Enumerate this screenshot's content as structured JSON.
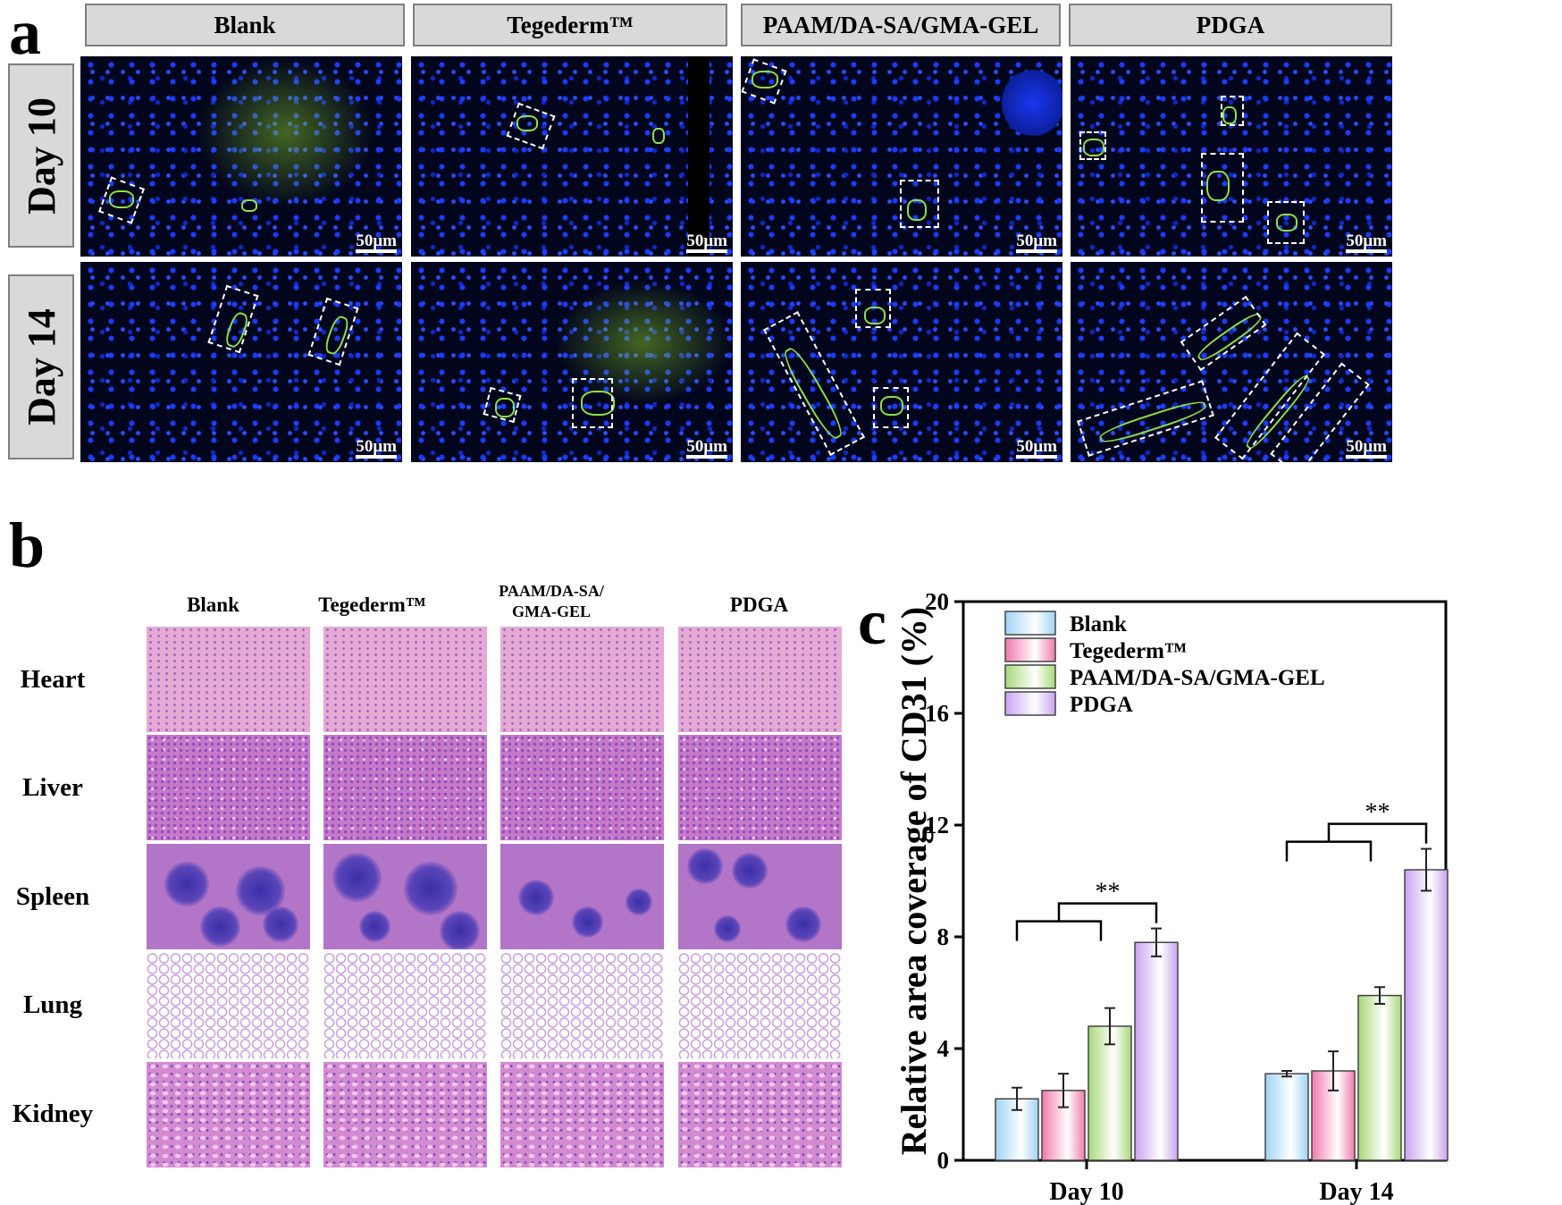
{
  "panel_a": {
    "letter": "a",
    "columns": [
      "Blank",
      "Tegederm™",
      "PAAM/DA-SA/GMA-GEL",
      "PDGA"
    ],
    "rows": [
      "Day 10",
      "Day 14"
    ],
    "scale_bar": "50μm"
  },
  "panel_b": {
    "letter": "b",
    "columns": [
      "Blank",
      "Tegederm™",
      "PAAM/DA-SA/ GMA-GEL",
      "PDGA"
    ],
    "rows": [
      "Heart",
      "Liver",
      "Spleen",
      "Lung",
      "Kidney"
    ]
  },
  "panel_c": {
    "letter": "c"
  },
  "chart_data": {
    "type": "bar",
    "categories": [
      "Day 10",
      "Day 14"
    ],
    "ylabel": "Relative area coverage of CD31 (%)",
    "xlabel": "",
    "ylim": [
      0,
      20
    ],
    "yticks": [
      0,
      4,
      8,
      12,
      16,
      20
    ],
    "legend_position": "top-left",
    "series": [
      {
        "name": "Blank",
        "values": [
          2.2,
          3.1
        ],
        "errors": [
          0.4,
          0.1
        ],
        "color": "#9fd3f5"
      },
      {
        "name": "Tegederm™",
        "values": [
          2.5,
          3.2
        ],
        "errors": [
          0.6,
          0.7
        ],
        "color": "#f07aab"
      },
      {
        "name": "PAAM/DA-SA/GMA-GEL",
        "values": [
          4.8,
          5.9
        ],
        "errors": [
          0.65,
          0.3
        ],
        "color": "#a8d878"
      },
      {
        "name": "PDGA",
        "values": [
          7.8,
          10.4
        ],
        "errors": [
          0.5,
          0.75
        ],
        "color": "#c9a3f0"
      }
    ],
    "significance": [
      {
        "category": "Day 10",
        "label": "**"
      },
      {
        "category": "Day 14",
        "label": "**"
      }
    ]
  }
}
